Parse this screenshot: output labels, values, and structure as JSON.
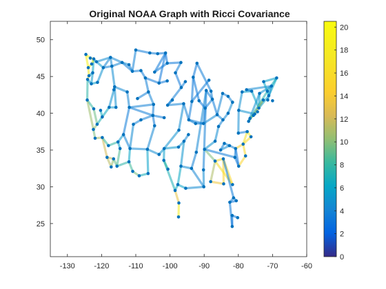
{
  "chart_data": {
    "type": "scatter",
    "title": "Original NOAA Graph with Ricci Covariance",
    "xlabel": "",
    "ylabel": "",
    "xlim": [
      -135,
      -60
    ],
    "ylim": [
      20.5,
      52.5
    ],
    "xticks": [
      -130,
      -120,
      -110,
      -100,
      -90,
      -80,
      -70,
      -60
    ],
    "yticks": [
      25,
      30,
      35,
      40,
      45,
      50
    ],
    "grid": false,
    "colorbar": {
      "colormap": "parula",
      "range": [
        0,
        20.5
      ],
      "ticks": [
        0,
        2,
        4,
        6,
        8,
        10,
        12,
        14,
        16,
        18,
        20
      ]
    },
    "node_color": "#0072BD",
    "nodes": [
      [
        -124.6,
        48.0
      ],
      [
        -123.3,
        47.5
      ],
      [
        -123.9,
        46.2
      ],
      [
        -122.3,
        47.4
      ],
      [
        -123.7,
        45.1
      ],
      [
        -122.6,
        45.5
      ],
      [
        -124.1,
        44.6
      ],
      [
        -123.0,
        44.0
      ],
      [
        -122.9,
        46.7
      ],
      [
        -121.5,
        47.0
      ],
      [
        -117.4,
        47.6
      ],
      [
        -119.5,
        46.2
      ],
      [
        -121.2,
        44.2
      ],
      [
        -117.0,
        46.4
      ],
      [
        -124.2,
        41.8
      ],
      [
        -122.3,
        40.6
      ],
      [
        -121.3,
        38.5
      ],
      [
        -122.4,
        37.8
      ],
      [
        -121.9,
        36.6
      ],
      [
        -119.8,
        39.5
      ],
      [
        -119.8,
        36.7
      ],
      [
        -118.4,
        34.0
      ],
      [
        -117.2,
        32.7
      ],
      [
        -116.5,
        33.8
      ],
      [
        -115.5,
        32.8
      ],
      [
        -114.6,
        35.2
      ],
      [
        -115.2,
        36.1
      ],
      [
        -118.0,
        35.6
      ],
      [
        -117.8,
        40.8
      ],
      [
        -115.8,
        40.8
      ],
      [
        -116.2,
        43.6
      ],
      [
        -112.5,
        42.9
      ],
      [
        -111.9,
        40.8
      ],
      [
        -113.6,
        37.1
      ],
      [
        -111.7,
        35.2
      ],
      [
        -112.0,
        33.4
      ],
      [
        -110.9,
        32.1
      ],
      [
        -109.0,
        31.5
      ],
      [
        -114.0,
        46.9
      ],
      [
        -111.0,
        45.7
      ],
      [
        -108.5,
        45.8
      ],
      [
        -112.0,
        46.6
      ],
      [
        -106.6,
        35.1
      ],
      [
        -104.8,
        41.2
      ],
      [
        -106.4,
        31.8
      ],
      [
        -105.0,
        39.7
      ],
      [
        -104.5,
        38.3
      ],
      [
        -107.2,
        44.8
      ],
      [
        -106.3,
        42.9
      ],
      [
        -103.2,
        44.1
      ],
      [
        -101.3,
        48.2
      ],
      [
        -100.8,
        46.8
      ],
      [
        -96.8,
        46.9
      ],
      [
        -98.4,
        45.5
      ],
      [
        -96.7,
        43.5
      ],
      [
        -100.7,
        41.1
      ],
      [
        -96.0,
        41.3
      ],
      [
        -97.4,
        37.7
      ],
      [
        -101.7,
        35.2
      ],
      [
        -101.8,
        33.6
      ],
      [
        -97.5,
        35.4
      ],
      [
        -95.9,
        36.2
      ],
      [
        -98.5,
        29.5
      ],
      [
        -97.7,
        30.3
      ],
      [
        -96.8,
        32.8
      ],
      [
        -95.4,
        29.8
      ],
      [
        -97.4,
        27.8
      ],
      [
        -97.5,
        25.9
      ],
      [
        -94.5,
        39.1
      ],
      [
        -93.6,
        41.6
      ],
      [
        -93.2,
        44.9
      ],
      [
        -92.1,
        46.8
      ],
      [
        -90.2,
        38.6
      ],
      [
        -92.3,
        34.7
      ],
      [
        -90.1,
        30.0
      ],
      [
        -93.7,
        32.5
      ],
      [
        -90.2,
        32.3
      ],
      [
        -88.0,
        43.0
      ],
      [
        -89.4,
        43.1
      ],
      [
        -87.6,
        41.9
      ],
      [
        -86.2,
        39.8
      ],
      [
        -84.5,
        39.1
      ],
      [
        -83.0,
        40.0
      ],
      [
        -81.7,
        41.5
      ],
      [
        -83.0,
        42.3
      ],
      [
        -84.6,
        42.7
      ],
      [
        -86.8,
        36.2
      ],
      [
        -85.8,
        38.2
      ],
      [
        -89.9,
        35.1
      ],
      [
        -86.8,
        33.5
      ],
      [
        -88.1,
        30.7
      ],
      [
        -84.3,
        30.4
      ],
      [
        -84.4,
        33.8
      ],
      [
        -81.7,
        30.3
      ],
      [
        -82.5,
        27.9
      ],
      [
        -80.2,
        25.8
      ],
      [
        -81.4,
        28.5
      ],
      [
        -81.8,
        26.1
      ],
      [
        -81.8,
        24.6
      ],
      [
        -80.6,
        28.1
      ],
      [
        -80.8,
        35.2
      ],
      [
        -78.6,
        35.8
      ],
      [
        -77.9,
        34.2
      ],
      [
        -79.9,
        32.8
      ],
      [
        -81.0,
        34.0
      ],
      [
        -77.4,
        37.5
      ],
      [
        -76.3,
        36.8
      ],
      [
        -80.0,
        37.3
      ],
      [
        -79.9,
        40.4
      ],
      [
        -75.2,
        39.9
      ],
      [
        -77.0,
        38.9
      ],
      [
        -76.6,
        39.3
      ],
      [
        -74.0,
        40.7
      ],
      [
        -73.8,
        42.7
      ],
      [
        -76.1,
        43.0
      ],
      [
        -78.9,
        42.9
      ],
      [
        -71.1,
        42.4
      ],
      [
        -72.7,
        41.8
      ],
      [
        -71.4,
        41.8
      ],
      [
        -70.3,
        43.7
      ],
      [
        -68.8,
        44.8
      ],
      [
        -72.6,
        44.3
      ],
      [
        -71.5,
        43.0
      ],
      [
        -75.6,
        39.7
      ],
      [
        -74.4,
        40.2
      ],
      [
        -77.6,
        43.2
      ],
      [
        -70.0,
        41.7
      ],
      [
        -82.6,
        35.6
      ],
      [
        -84.1,
        35.9
      ],
      [
        -85.2,
        35.0
      ],
      [
        -88.6,
        44.5
      ],
      [
        -89.7,
        40.7
      ],
      [
        -91.5,
        41.7
      ],
      [
        -94.6,
        37.1
      ],
      [
        -92.5,
        38.6
      ],
      [
        -100.6,
        32.4
      ],
      [
        -103.2,
        34.4
      ],
      [
        -108.5,
        39.1
      ],
      [
        -109.5,
        42.0
      ],
      [
        -110.7,
        38.5
      ],
      [
        -100.8,
        44.4
      ],
      [
        -101.7,
        39.4
      ],
      [
        -99.3,
        41.8
      ],
      [
        -104.5,
        45.6
      ],
      [
        -95.5,
        44.3
      ],
      [
        -110.0,
        48.6
      ],
      [
        -105.9,
        48.2
      ],
      [
        -103.6,
        48.1
      ],
      [
        -116.4,
        43.2
      ],
      [
        -120.3,
        40.4
      ]
    ],
    "edges": [
      [
        0,
        1,
        18.5
      ],
      [
        1,
        3,
        17.9
      ],
      [
        0,
        2,
        18.8
      ],
      [
        2,
        4,
        17.2
      ],
      [
        4,
        6,
        16.5
      ],
      [
        3,
        5,
        6.2
      ],
      [
        5,
        7,
        5.4
      ],
      [
        6,
        7,
        4.8
      ],
      [
        2,
        8,
        19.1
      ],
      [
        8,
        3,
        18.2
      ],
      [
        3,
        9,
        5.1
      ],
      [
        9,
        10,
        4.6
      ],
      [
        9,
        11,
        5.3
      ],
      [
        11,
        10,
        4.1
      ],
      [
        11,
        12,
        4.9
      ],
      [
        12,
        7,
        5.6
      ],
      [
        10,
        13,
        4.2
      ],
      [
        13,
        11,
        3.9
      ],
      [
        4,
        5,
        5.5
      ],
      [
        6,
        14,
        7.8
      ],
      [
        14,
        15,
        8.1
      ],
      [
        15,
        16,
        9.4
      ],
      [
        16,
        17,
        10.1
      ],
      [
        17,
        18,
        9.8
      ],
      [
        14,
        17,
        10.6
      ],
      [
        16,
        19,
        7.2
      ],
      [
        18,
        20,
        10.9
      ],
      [
        20,
        21,
        12.2
      ],
      [
        21,
        22,
        11.4
      ],
      [
        22,
        23,
        10.5
      ],
      [
        21,
        23,
        11.8
      ],
      [
        23,
        24,
        9.2
      ],
      [
        24,
        25,
        8.7
      ],
      [
        25,
        26,
        5.8
      ],
      [
        26,
        27,
        7.9
      ],
      [
        27,
        20,
        8.3
      ],
      [
        19,
        28,
        6.5
      ],
      [
        28,
        29,
        5.3
      ],
      [
        29,
        30,
        4.7
      ],
      [
        30,
        31,
        4.3
      ],
      [
        31,
        32,
        4.1
      ],
      [
        32,
        33,
        3.5
      ],
      [
        33,
        26,
        5.2
      ],
      [
        33,
        34,
        4.0
      ],
      [
        34,
        35,
        6.1
      ],
      [
        35,
        36,
        8.4
      ],
      [
        36,
        37,
        9.6
      ],
      [
        35,
        24,
        7.7
      ],
      [
        10,
        38,
        4.2
      ],
      [
        38,
        39,
        3.8
      ],
      [
        39,
        40,
        3.6
      ],
      [
        39,
        41,
        3.9
      ],
      [
        41,
        38,
        4.4
      ],
      [
        13,
        38,
        4.1
      ],
      [
        13,
        30,
        4.6
      ],
      [
        40,
        47,
        3.5
      ],
      [
        47,
        48,
        3.8
      ],
      [
        48,
        43,
        4.0
      ],
      [
        43,
        45,
        3.7
      ],
      [
        45,
        46,
        3.3
      ],
      [
        46,
        42,
        4.2
      ],
      [
        42,
        44,
        5.9
      ],
      [
        44,
        37,
        6.8
      ],
      [
        42,
        34,
        4.3
      ],
      [
        45,
        32,
        3.6
      ],
      [
        43,
        32,
        3.9
      ],
      [
        47,
        49,
        3.4
      ],
      [
        49,
        50,
        3.2
      ],
      [
        50,
        51,
        3.1
      ],
      [
        51,
        52,
        3.3
      ],
      [
        52,
        53,
        3.6
      ],
      [
        53,
        54,
        3.4
      ],
      [
        54,
        55,
        3.7
      ],
      [
        55,
        56,
        4.0
      ],
      [
        56,
        57,
        4.5
      ],
      [
        57,
        58,
        4.8
      ],
      [
        58,
        59,
        5.6
      ],
      [
        59,
        62,
        7.0
      ],
      [
        58,
        60,
        5.3
      ],
      [
        60,
        61,
        4.7
      ],
      [
        61,
        64,
        5.1
      ],
      [
        64,
        63,
        6.3
      ],
      [
        63,
        62,
        6.7
      ],
      [
        62,
        66,
        13.2
      ],
      [
        66,
        67,
        18.1
      ],
      [
        63,
        65,
        5.9
      ],
      [
        65,
        74,
        4.4
      ],
      [
        74,
        75,
        4.1
      ],
      [
        75,
        64,
        4.6
      ],
      [
        75,
        73,
        3.9
      ],
      [
        73,
        78,
        4.2
      ],
      [
        78,
        76,
        3.8
      ],
      [
        76,
        74,
        4.5
      ],
      [
        56,
        68,
        3.9
      ],
      [
        68,
        69,
        3.5
      ],
      [
        69,
        70,
        3.3
      ],
      [
        70,
        71,
        3.4
      ],
      [
        71,
        77,
        3.6
      ],
      [
        77,
        79,
        3.8
      ],
      [
        79,
        80,
        3.5
      ],
      [
        80,
        81,
        3.9
      ],
      [
        81,
        82,
        4.2
      ],
      [
        82,
        83,
        4.4
      ],
      [
        83,
        84,
        4.0
      ],
      [
        84,
        85,
        3.7
      ],
      [
        85,
        80,
        4.1
      ],
      [
        79,
        78,
        3.6
      ],
      [
        72,
        68,
        3.8
      ],
      [
        72,
        80,
        4.3
      ],
      [
        81,
        87,
        4.0
      ],
      [
        87,
        86,
        4.6
      ],
      [
        86,
        88,
        4.9
      ],
      [
        88,
        89,
        9.8
      ],
      [
        89,
        90,
        11.1
      ],
      [
        90,
        91,
        13.6
      ],
      [
        91,
        92,
        14.8
      ],
      [
        92,
        93,
        15.3
      ],
      [
        93,
        89,
        16.2
      ],
      [
        89,
        92,
        15.1
      ],
      [
        92,
        96,
        3.5
      ],
      [
        96,
        94,
        3.8
      ],
      [
        94,
        98,
        3.3
      ],
      [
        98,
        97,
        3.1
      ],
      [
        97,
        95,
        3.4
      ],
      [
        99,
        96,
        3.6
      ],
      [
        99,
        94,
        3.2
      ],
      [
        88,
        104,
        3.5
      ],
      [
        104,
        100,
        3.7
      ],
      [
        100,
        103,
        3.2
      ],
      [
        103,
        104,
        3.4
      ],
      [
        100,
        101,
        14.5
      ],
      [
        101,
        102,
        15.6
      ],
      [
        102,
        103,
        14.9
      ],
      [
        101,
        105,
        16.7
      ],
      [
        105,
        106,
        17.4
      ],
      [
        106,
        101,
        15.9
      ],
      [
        105,
        107,
        3.6
      ],
      [
        107,
        108,
        4.5
      ],
      [
        108,
        109,
        4.8
      ],
      [
        109,
        111,
        5.3
      ],
      [
        111,
        110,
        5.0
      ],
      [
        110,
        113,
        4.9
      ],
      [
        113,
        112,
        5.2
      ],
      [
        112,
        114,
        5.8
      ],
      [
        114,
        115,
        5.5
      ],
      [
        115,
        108,
        4.7
      ],
      [
        109,
        117,
        12.8
      ],
      [
        117,
        110,
        13.4
      ],
      [
        116,
        120,
        6.2
      ],
      [
        116,
        112,
        5.7
      ],
      [
        120,
        122,
        6.8
      ],
      [
        122,
        110,
        7.3
      ],
      [
        113,
        119,
        4.7
      ],
      [
        119,
        125,
        4.4
      ],
      [
        125,
        114,
        4.1
      ],
      [
        118,
        119,
        4.6
      ],
      [
        121,
        116,
        6.0
      ],
      [
        121,
        120,
        5.8
      ],
      [
        127,
        100,
        4.0
      ],
      [
        128,
        127,
        4.3
      ],
      [
        129,
        128,
        3.9
      ],
      [
        127,
        129,
        4.6
      ],
      [
        130,
        69,
        3.5
      ],
      [
        131,
        72,
        3.7
      ],
      [
        132,
        131,
        3.4
      ],
      [
        132,
        70,
        3.3
      ],
      [
        131,
        79,
        3.6
      ],
      [
        133,
        61,
        4.2
      ],
      [
        134,
        72,
        3.9
      ],
      [
        134,
        68,
        4.0
      ],
      [
        135,
        59,
        7.8
      ],
      [
        136,
        58,
        5.1
      ],
      [
        136,
        42,
        4.5
      ],
      [
        137,
        45,
        3.8
      ],
      [
        138,
        48,
        3.6
      ],
      [
        139,
        34,
        4.4
      ],
      [
        139,
        137,
        4.0
      ],
      [
        140,
        49,
        3.3
      ],
      [
        141,
        45,
        3.5
      ],
      [
        142,
        55,
        3.9
      ],
      [
        143,
        50,
        3.3
      ],
      [
        144,
        54,
        3.6
      ],
      [
        145,
        39,
        3.9
      ],
      [
        146,
        145,
        3.5
      ],
      [
        147,
        50,
        3.4
      ],
      [
        148,
        30,
        4.1
      ],
      [
        149,
        19,
        6.6
      ],
      [
        148,
        28,
        4.8
      ],
      [
        147,
        146,
        3.7
      ],
      [
        143,
        51,
        3.5
      ]
    ]
  }
}
